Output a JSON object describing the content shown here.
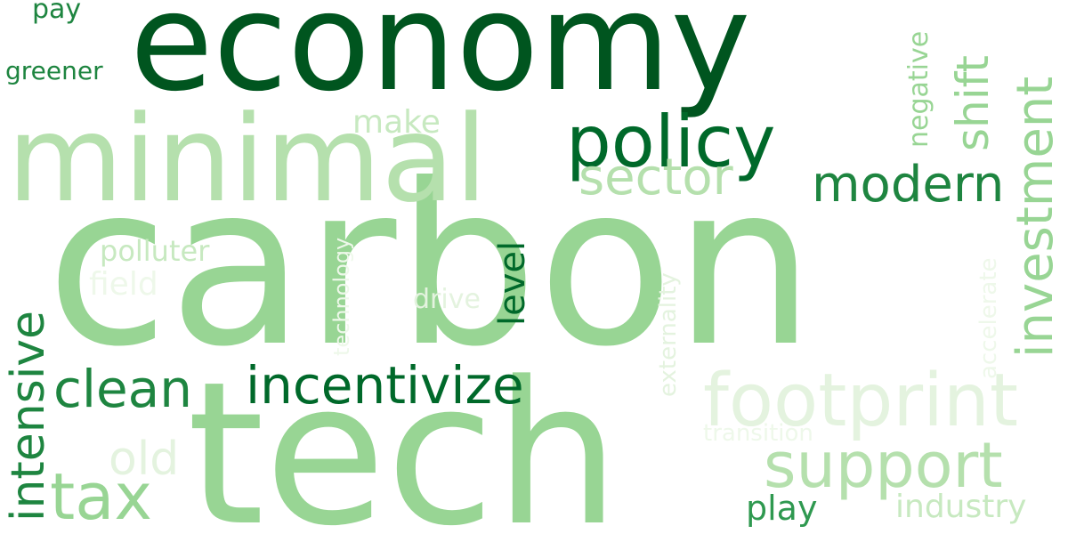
{
  "words": {
    "carbon": "carbon",
    "tech": "tech",
    "economy": "economy",
    "minimal": "minimal",
    "policy": "policy",
    "footprint": "footprint",
    "support": "support",
    "incentivize": "incentivize",
    "clean": "clean",
    "modern": "modern",
    "sector": "sector",
    "tax": "tax",
    "intensive": "intensive",
    "investment": "investment",
    "shift": "shift",
    "negative": "negative",
    "old": "old",
    "make": "make",
    "level": "level",
    "polluter": "polluter",
    "field": "field",
    "drive": "drive",
    "play": "play",
    "industry": "industry",
    "transition": "transition",
    "externality": "externality",
    "accelerate": "accelerate",
    "technology": "technology",
    "greener": "greener",
    "pay": "pay"
  },
  "colors": {
    "darkest": "#00551f",
    "dark": "#00692a",
    "medium_dark": "#1e8540",
    "medium": "#2f9950",
    "mid_light": "#8fd08e",
    "light": "#98d594",
    "lighter": "#b5e0ad",
    "pale": "#c7e9c0",
    "palest": "#e4f3df",
    "faint": "#eef8ea"
  }
}
